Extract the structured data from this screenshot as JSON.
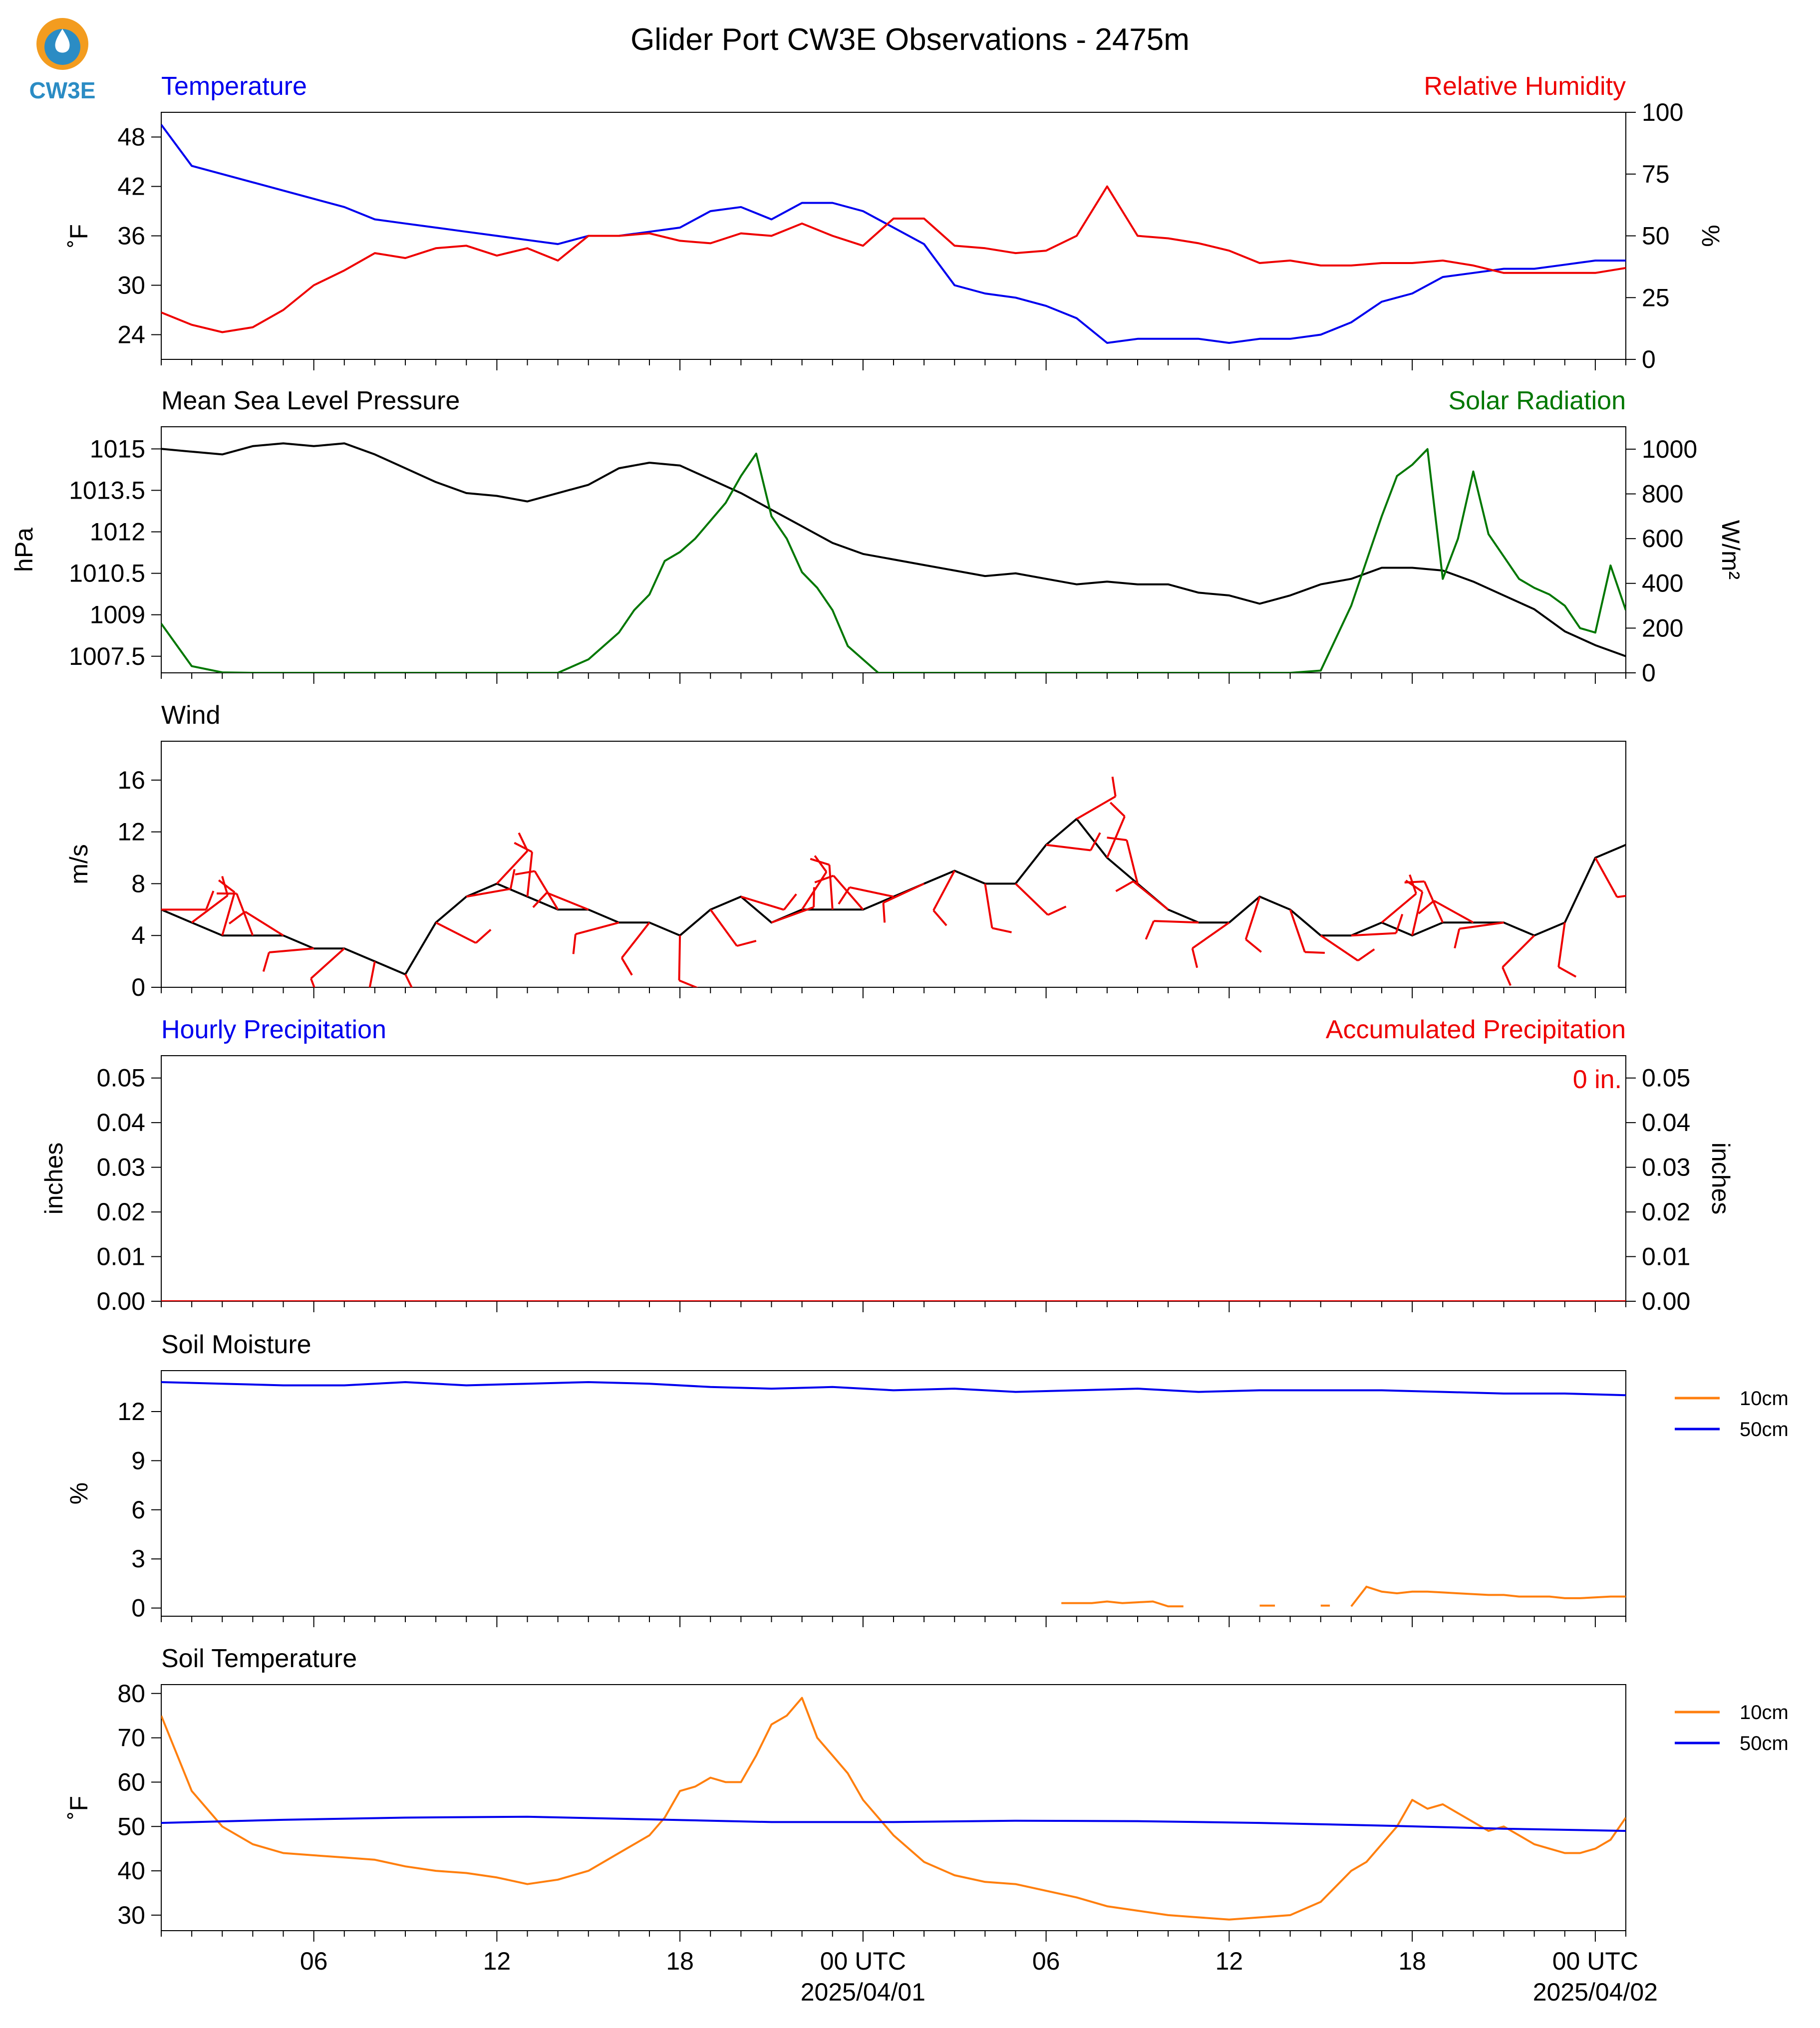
{
  "title": "Glider Port CW3E Observations - 2475m",
  "logo": {
    "text": "CW3E",
    "icon": "cw3e-logo-icon"
  },
  "colors": {
    "blue": "#0000ee",
    "red": "#ee0000",
    "green": "#007700",
    "orange": "#ff7f0e",
    "black": "#000000",
    "logo": "#2b8cc4",
    "logo_orange": "#f39c1f"
  },
  "x_axis": {
    "ticks": [
      {
        "hour": 6,
        "label": "06"
      },
      {
        "hour": 12,
        "label": "12"
      },
      {
        "hour": 18,
        "label": "18"
      },
      {
        "hour": 24,
        "label": "00 UTC",
        "date": "2025/04/01"
      },
      {
        "hour": 30,
        "label": "06"
      },
      {
        "hour": 36,
        "label": "12"
      },
      {
        "hour": 42,
        "label": "18"
      },
      {
        "hour": 48,
        "label": "00 UTC",
        "date": "2025/04/02"
      }
    ],
    "range_hours": [
      1,
      49
    ]
  },
  "chart_data": [
    {
      "type": "line",
      "title_left": "Temperature",
      "title_right": "Relative Humidity",
      "ylabel": "˚F",
      "ylabel_right": "%",
      "ylim": [
        21,
        51
      ],
      "yticks": [
        24,
        30,
        36,
        42,
        48
      ],
      "ylim_right": [
        0,
        100
      ],
      "yticks_right": [
        0,
        25,
        50,
        75,
        100
      ],
      "series": [
        {
          "name": "Temperature",
          "axis": "left",
          "color": "#0000ee",
          "x": [
            1,
            2,
            3,
            4,
            5,
            6,
            7,
            8,
            9,
            10,
            11,
            12,
            13,
            14,
            15,
            16,
            17,
            18,
            19,
            20,
            21,
            22,
            23,
            24,
            25,
            26,
            27,
            28,
            29,
            30,
            31,
            32,
            33,
            34,
            35,
            36,
            37,
            38,
            39,
            40,
            41,
            42,
            43,
            44,
            45,
            46,
            47,
            48,
            49
          ],
          "y": [
            49.5,
            44.5,
            43.5,
            42.5,
            41.5,
            40.5,
            39.5,
            38,
            37.5,
            37,
            36.5,
            36,
            35.5,
            35,
            36,
            36,
            36.5,
            37,
            39,
            39.5,
            38,
            40,
            40,
            39,
            37,
            35,
            30,
            29,
            28.5,
            27.5,
            26,
            23,
            23.5,
            23.5,
            23.5,
            23,
            23.5,
            23.5,
            24,
            25.5,
            28,
            29,
            31,
            31.5,
            32,
            32,
            32.5,
            33,
            33
          ]
        },
        {
          "name": "Relative Humidity",
          "axis": "right",
          "color": "#ee0000",
          "x": [
            1,
            2,
            3,
            4,
            5,
            6,
            7,
            8,
            9,
            10,
            11,
            12,
            13,
            14,
            15,
            16,
            17,
            18,
            19,
            20,
            21,
            22,
            23,
            24,
            25,
            26,
            27,
            28,
            29,
            30,
            31,
            32,
            33,
            34,
            35,
            36,
            37,
            38,
            39,
            40,
            41,
            42,
            43,
            44,
            45,
            46,
            47,
            48,
            49
          ],
          "y": [
            19,
            14,
            11,
            13,
            20,
            30,
            36,
            43,
            41,
            45,
            46,
            42,
            45,
            40,
            50,
            50,
            51,
            48,
            47,
            51,
            50,
            55,
            50,
            46,
            57,
            57,
            46,
            45,
            43,
            44,
            50,
            70,
            50,
            49,
            47,
            44,
            39,
            40,
            38,
            38,
            39,
            39,
            40,
            38,
            35,
            35,
            35,
            35,
            37
          ]
        }
      ]
    },
    {
      "type": "line",
      "title_left": "Mean Sea Level Pressure",
      "title_right": "Solar Radiation",
      "ylabel": "hPa",
      "ylabel_right": "W/m²",
      "ylim": [
        1006.9,
        1015.8
      ],
      "yticks": [
        1007.5,
        1009.0,
        1010.5,
        1012.0,
        1013.5,
        1015.0
      ],
      "ylim_right": [
        0,
        1100
      ],
      "yticks_right": [
        0,
        200,
        400,
        600,
        800,
        1000
      ],
      "series": [
        {
          "name": "Mean Sea Level Pressure",
          "axis": "left",
          "color": "#000000",
          "x": [
            1,
            2,
            3,
            4,
            5,
            6,
            7,
            8,
            9,
            10,
            11,
            12,
            13,
            14,
            15,
            16,
            17,
            18,
            19,
            20,
            21,
            22,
            23,
            24,
            25,
            26,
            27,
            28,
            29,
            30,
            31,
            32,
            33,
            34,
            35,
            36,
            37,
            38,
            39,
            40,
            41,
            42,
            43,
            44,
            45,
            46,
            47,
            48,
            49
          ],
          "y": [
            1015.0,
            1014.9,
            1014.8,
            1015.1,
            1015.2,
            1015.1,
            1015.2,
            1014.8,
            1014.3,
            1013.8,
            1013.4,
            1013.3,
            1013.1,
            1013.4,
            1013.7,
            1014.3,
            1014.5,
            1014.4,
            1013.9,
            1013.4,
            1012.8,
            1012.2,
            1011.6,
            1011.2,
            1011.0,
            1010.8,
            1010.6,
            1010.4,
            1010.5,
            1010.3,
            1010.1,
            1010.2,
            1010.1,
            1010.1,
            1009.8,
            1009.7,
            1009.4,
            1009.7,
            1010.1,
            1010.3,
            1010.7,
            1010.7,
            1010.6,
            1010.2,
            1009.7,
            1009.2,
            1008.4,
            1007.9,
            1007.5
          ]
        },
        {
          "name": "Solar Radiation",
          "axis": "right",
          "color": "#007700",
          "x": [
            1,
            2,
            3,
            4,
            5,
            6,
            7,
            8,
            9,
            10,
            11,
            12,
            13,
            14,
            15,
            16,
            16.5,
            17,
            17.5,
            18,
            18.5,
            19,
            19.5,
            20,
            20.5,
            21,
            21.5,
            22,
            22.5,
            23,
            23.5,
            24,
            24.5,
            25,
            25.5,
            26,
            27,
            28,
            29,
            30,
            31,
            32,
            33,
            34,
            35,
            36,
            37,
            38,
            39,
            40,
            40.5,
            41,
            41.5,
            42,
            42.5,
            43,
            43.5,
            44,
            44.5,
            45,
            45.5,
            46,
            46.5,
            47,
            47.5,
            48,
            48.5,
            49
          ],
          "y": [
            220,
            30,
            2,
            0,
            0,
            0,
            0,
            0,
            0,
            0,
            0,
            0,
            0,
            0,
            60,
            180,
            280,
            350,
            500,
            540,
            600,
            680,
            760,
            880,
            980,
            700,
            600,
            450,
            380,
            280,
            120,
            60,
            0,
            0,
            0,
            0,
            0,
            0,
            0,
            0,
            0,
            0,
            0,
            0,
            0,
            0,
            0,
            0,
            10,
            300,
            500,
            700,
            880,
            930,
            1000,
            420,
            600,
            900,
            620,
            520,
            420,
            380,
            350,
            300,
            200,
            180,
            480,
            280
          ]
        }
      ]
    },
    {
      "type": "line",
      "title_left": "Wind",
      "ylabel": "m/s",
      "ylim": [
        0,
        19
      ],
      "yticks": [
        0,
        4,
        8,
        12,
        16
      ],
      "barbs_color": "#ee0000",
      "series": [
        {
          "name": "Wind",
          "axis": "left",
          "color": "#000000",
          "x": [
            1,
            2,
            3,
            4,
            5,
            6,
            7,
            8,
            9,
            10,
            11,
            12,
            13,
            14,
            15,
            16,
            17,
            18,
            19,
            20,
            21,
            22,
            23,
            24,
            25,
            26,
            27,
            28,
            29,
            30,
            31,
            32,
            33,
            34,
            35,
            36,
            37,
            38,
            39,
            40,
            41,
            42,
            43,
            44,
            45,
            46,
            47,
            48,
            49
          ],
          "y": [
            6,
            5,
            4,
            4,
            4,
            3,
            3,
            2,
            1,
            5,
            7,
            8,
            7,
            6,
            6,
            5,
            5,
            4,
            6,
            7,
            5,
            6,
            6,
            6,
            7,
            8,
            9,
            8,
            8,
            11,
            13,
            10,
            8,
            6,
            5,
            5,
            7,
            6,
            4,
            4,
            5,
            4,
            5,
            5,
            5,
            4,
            5,
            10,
            11
          ]
        }
      ]
    },
    {
      "type": "line",
      "title_left": "Hourly Precipitation",
      "title_right": "Accumulated Precipitation",
      "annotation": "0 in.",
      "ylabel": "inches",
      "ylabel_right": "inches",
      "ylim": [
        0,
        0.055
      ],
      "yticks": [
        0.0,
        0.01,
        0.02,
        0.03,
        0.04,
        0.05
      ],
      "yticklabels": [
        "0.00",
        "0.01",
        "0.02",
        "0.03",
        "0.04",
        "0.05"
      ],
      "ylim_right": [
        0,
        0.055
      ],
      "yticks_right": [
        0.0,
        0.01,
        0.02,
        0.03,
        0.04,
        0.05
      ],
      "yticklabels_right": [
        "0.00",
        "0.01",
        "0.02",
        "0.03",
        "0.04",
        "0.05"
      ],
      "series": [
        {
          "name": "Hourly Precipitation",
          "axis": "left",
          "color": "#0000ee",
          "x": [
            1,
            49
          ],
          "y": [
            0,
            0
          ]
        },
        {
          "name": "Accumulated Precipitation",
          "axis": "right",
          "color": "#ee0000",
          "x": [
            1,
            49
          ],
          "y": [
            0,
            0
          ]
        }
      ]
    },
    {
      "type": "line",
      "title_left": "Soil Moisture",
      "ylabel": "%",
      "ylim": [
        -0.5,
        14.5
      ],
      "yticks": [
        0,
        3,
        6,
        9,
        12
      ],
      "legend": [
        "10cm",
        "50cm"
      ],
      "series": [
        {
          "name": "10cm",
          "axis": "left",
          "color": "#ff7f0e",
          "segments": [
            {
              "x": [
                30.5,
                31,
                31.5,
                32,
                32.5,
                33,
                33.5,
                34,
                34.5
              ],
              "y": [
                0.3,
                0.3,
                0.3,
                0.4,
                0.3,
                0.35,
                0.4,
                0.1,
                0.1
              ]
            },
            {
              "x": [
                37,
                37.5
              ],
              "y": [
                0.15,
                0.15
              ]
            },
            {
              "x": [
                39,
                39.3
              ],
              "y": [
                0.15,
                0.15
              ]
            },
            {
              "x": [
                40,
                40.5,
                41,
                41.5,
                42,
                42.5,
                43,
                43.5,
                44,
                44.5,
                45,
                45.5,
                46,
                46.5,
                47,
                47.5,
                48,
                48.5,
                49
              ],
              "y": [
                0.1,
                1.3,
                1.0,
                0.9,
                1.0,
                1.0,
                0.95,
                0.9,
                0.85,
                0.8,
                0.8,
                0.7,
                0.7,
                0.7,
                0.6,
                0.6,
                0.65,
                0.7,
                0.7
              ]
            }
          ]
        },
        {
          "name": "50cm",
          "axis": "left",
          "color": "#0000ee",
          "x": [
            1,
            3,
            5,
            7,
            9,
            11,
            13,
            15,
            17,
            19,
            21,
            23,
            25,
            27,
            29,
            31,
            33,
            35,
            37,
            39,
            41,
            43,
            45,
            47,
            49
          ],
          "y": [
            13.8,
            13.7,
            13.6,
            13.6,
            13.8,
            13.6,
            13.7,
            13.8,
            13.7,
            13.5,
            13.4,
            13.5,
            13.3,
            13.4,
            13.2,
            13.3,
            13.4,
            13.2,
            13.3,
            13.3,
            13.3,
            13.2,
            13.1,
            13.1,
            13.0
          ]
        }
      ]
    },
    {
      "type": "line",
      "title_left": "Soil Temperature",
      "ylabel": "˚F",
      "ylim": [
        26.5,
        82
      ],
      "yticks": [
        30,
        40,
        50,
        60,
        70,
        80
      ],
      "legend": [
        "10cm",
        "50cm"
      ],
      "series": [
        {
          "name": "10cm",
          "axis": "left",
          "color": "#ff7f0e",
          "x": [
            1,
            2,
            3,
            4,
            5,
            6,
            7,
            8,
            9,
            10,
            11,
            12,
            13,
            14,
            15,
            16,
            17,
            17.5,
            18,
            18.5,
            19,
            19.5,
            20,
            20.5,
            21,
            21.5,
            22,
            22.5,
            23,
            23.5,
            24,
            25,
            26,
            27,
            28,
            29,
            30,
            31,
            32,
            33,
            34,
            35,
            36,
            37,
            38,
            39,
            40,
            40.5,
            41,
            41.5,
            42,
            42.5,
            43,
            43.5,
            44,
            44.5,
            45,
            45.5,
            46,
            46.5,
            47,
            47.5,
            48,
            48.5,
            49
          ],
          "y": [
            75,
            58,
            50,
            46,
            44,
            43.5,
            43,
            42.5,
            41,
            40,
            39.5,
            38.5,
            37,
            38,
            40,
            44,
            48,
            52,
            58,
            59,
            61,
            60,
            60,
            66,
            73,
            75,
            79,
            70,
            66,
            62,
            56,
            48,
            42,
            39,
            37.5,
            37,
            35.5,
            34,
            32,
            31,
            30,
            29.5,
            29,
            29.5,
            30,
            33,
            40,
            42,
            46,
            50,
            56,
            54,
            55,
            53,
            51,
            49,
            50,
            48,
            46,
            45,
            44,
            44,
            45,
            47,
            52
          ]
        },
        {
          "name": "50cm",
          "axis": "left",
          "color": "#0000ee",
          "x": [
            1,
            5,
            9,
            13,
            17,
            21,
            25,
            29,
            33,
            37,
            41,
            45,
            49
          ],
          "y": [
            50.8,
            51.5,
            52,
            52.2,
            51.6,
            51,
            51,
            51.3,
            51.2,
            50.8,
            50.2,
            49.5,
            49
          ]
        }
      ]
    }
  ]
}
